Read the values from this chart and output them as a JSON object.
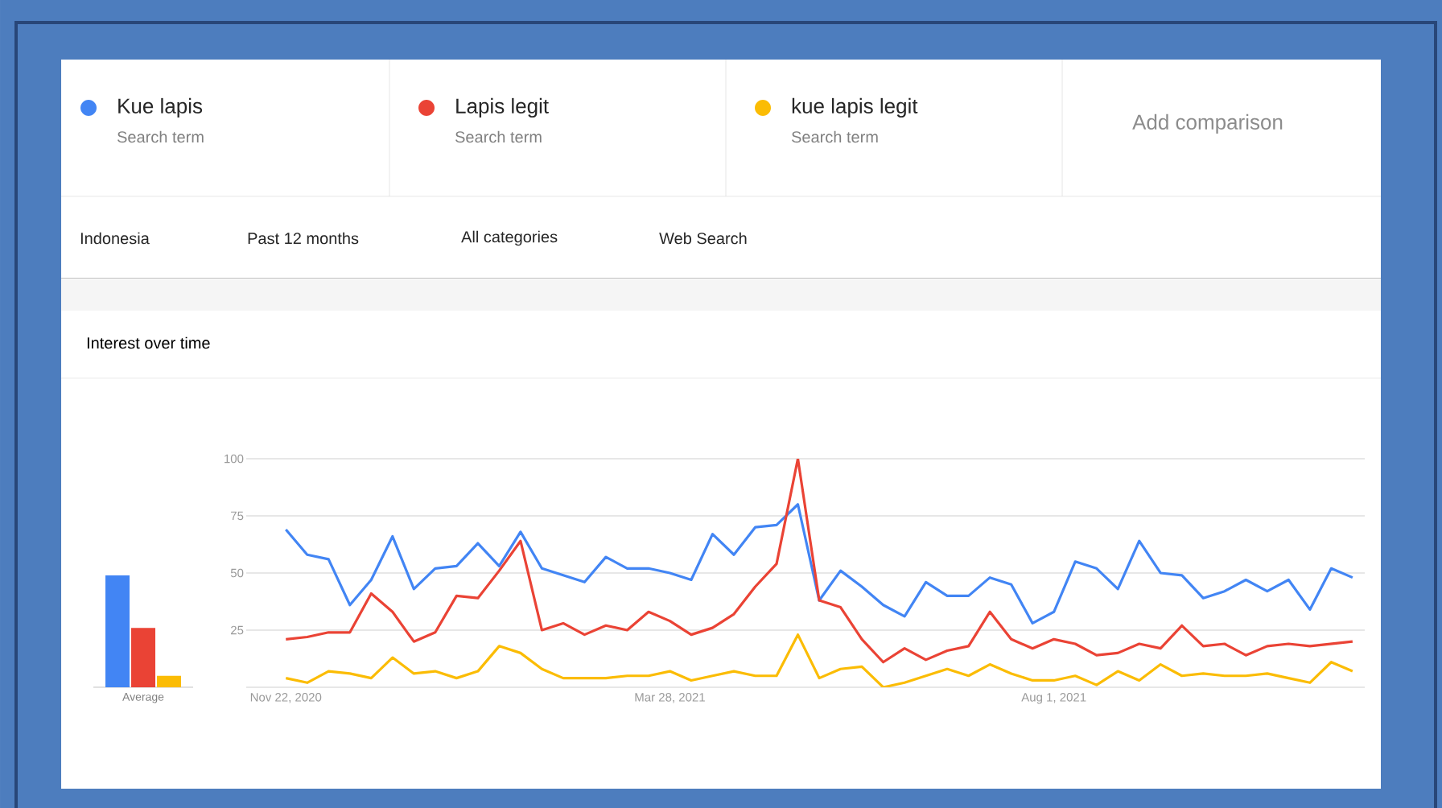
{
  "chart_data": [
    {
      "type": "bar",
      "title": "Interest over time",
      "categories": [
        "Average"
      ],
      "ylim": [
        0,
        100
      ],
      "tick_labels": "x",
      "series": [
        {
          "color": "#4285f4",
          "values": [
            49
          ]
        },
        {
          "color": "#ea4335",
          "values": [
            26
          ]
        },
        {
          "color": "#fbbc04",
          "values": [
            5
          ]
        }
      ]
    },
    {
      "type": "line",
      "legend": "top",
      "grid": "y",
      "marker": "none",
      "line_style": "solid",
      "annotations": [
        "Search term",
        "Search term",
        "Search term",
        "Add comparison",
        "Indonesia",
        "Past 12 months",
        "All categories",
        "Web Search"
      ],
      "x": [
        "2020-11-22",
        "2020-11-29",
        "2020-12-06",
        "2020-12-13",
        "2020-12-20",
        "2020-12-27",
        "2021-01-03",
        "2021-01-10",
        "2021-01-17",
        "2021-01-24",
        "2021-01-31",
        "2021-02-07",
        "2021-02-14",
        "2021-02-21",
        "2021-02-28",
        "2021-03-07",
        "2021-03-14",
        "2021-03-21",
        "2021-03-28",
        "2021-04-04",
        "2021-04-11",
        "2021-04-18",
        "2021-04-25",
        "2021-05-02",
        "2021-05-09",
        "2021-05-16",
        "2021-05-23",
        "2021-05-30",
        "2021-06-06",
        "2021-06-13",
        "2021-06-20",
        "2021-06-27",
        "2021-07-04",
        "2021-07-11",
        "2021-07-18",
        "2021-07-25",
        "2021-08-01",
        "2021-08-08",
        "2021-08-15",
        "2021-08-22",
        "2021-08-29",
        "2021-09-05",
        "2021-09-12",
        "2021-09-19",
        "2021-09-26",
        "2021-10-03",
        "2021-10-10",
        "2021-10-17",
        "2021-10-24",
        "2021-10-31",
        "2021-11-07"
      ],
      "xlim": [
        "2020-11-09",
        "2021-11-11"
      ],
      "xticks": [
        {
          "value": "2020-11-22",
          "label": "Nov 22, 2020"
        },
        {
          "value": "2021-03-28",
          "label": "Mar 28, 2021"
        },
        {
          "value": "2021-08-01",
          "label": "Aug 1, 2021"
        }
      ],
      "ylim": [
        0,
        100
      ],
      "yticks": [
        {
          "value": 0,
          "label": null
        },
        25,
        50,
        75,
        100
      ],
      "series": [
        {
          "name": "Kue lapis",
          "color": "#4285f4",
          "values": [
            69,
            58,
            56,
            36,
            47,
            66,
            43,
            52,
            53,
            63,
            53,
            68,
            52,
            49,
            46,
            57,
            52,
            52,
            50,
            47,
            67,
            58,
            70,
            71,
            80,
            38,
            51,
            44,
            36,
            31,
            46,
            40,
            40,
            48,
            45,
            28,
            33,
            55,
            52,
            43,
            64,
            50,
            49,
            39,
            42,
            47,
            42,
            47,
            34,
            52,
            48
          ]
        },
        {
          "name": "Lapis legit",
          "color": "#ea4335",
          "values": [
            21,
            22,
            24,
            24,
            41,
            33,
            20,
            24,
            40,
            39,
            51,
            64,
            25,
            28,
            23,
            27,
            25,
            33,
            29,
            23,
            26,
            32,
            44,
            54,
            100,
            38,
            35,
            21,
            11,
            17,
            12,
            16,
            18,
            33,
            21,
            17,
            21,
            19,
            14,
            15,
            19,
            17,
            27,
            18,
            19,
            14,
            18,
            19,
            18,
            19,
            20
          ]
        },
        {
          "name": "kue lapis legit",
          "color": "#fbbc04",
          "values": [
            4,
            2,
            7,
            6,
            4,
            13,
            6,
            7,
            4,
            7,
            18,
            15,
            8,
            4,
            4,
            4,
            5,
            5,
            7,
            3,
            5,
            7,
            5,
            5,
            23,
            4,
            8,
            9,
            0,
            2,
            5,
            8,
            5,
            10,
            6,
            3,
            3,
            5,
            1,
            7,
            3,
            10,
            5,
            6,
            5,
            5,
            6,
            4,
            2,
            11,
            7
          ]
        }
      ]
    }
  ]
}
